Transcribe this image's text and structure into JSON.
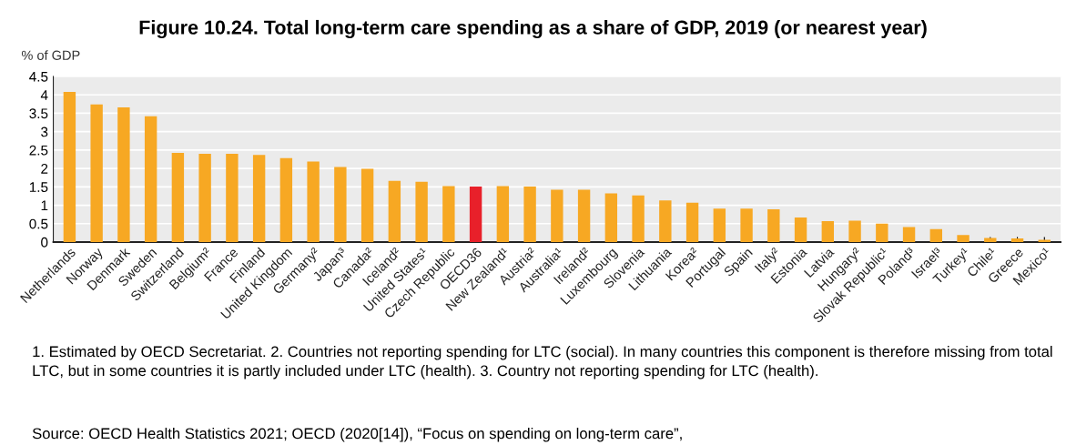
{
  "chart_data": {
    "type": "bar",
    "title": "Figure 10.24. Total long-term care spending as a share of GDP, 2019 (or nearest year)",
    "ylabel": "% of GDP",
    "categories": [
      "Netherlands",
      "Norway",
      "Denmark",
      "Sweden",
      "Switzerland",
      "Belgium²",
      "France",
      "Finland",
      "United Kingdom",
      "Germany²",
      "Japan³",
      "Canada²",
      "Iceland²",
      "United States¹",
      "Czech Republic",
      "OECD36",
      "New Zealand¹",
      "Austria²",
      "Australia¹",
      "Ireland²",
      "Luxembourg",
      "Slovenia",
      "Lithuania",
      "Korea²",
      "Portugal",
      "Spain",
      "Italy²",
      "Estonia",
      "Latvia",
      "Hungary²",
      "Slovak Republic¹",
      "Poland³",
      "Israel³",
      "Turkey¹",
      "Chile¹",
      "Greece",
      "Mexico¹"
    ],
    "values": [
      4.08,
      3.74,
      3.66,
      3.42,
      2.42,
      2.4,
      2.4,
      2.37,
      2.28,
      2.19,
      2.04,
      1.99,
      1.66,
      1.64,
      1.52,
      1.51,
      1.52,
      1.51,
      1.42,
      1.42,
      1.32,
      1.27,
      1.13,
      1.07,
      0.91,
      0.91,
      0.89,
      0.67,
      0.57,
      0.58,
      0.5,
      0.41,
      0.35,
      0.19,
      0.11,
      0.1,
      0.06
    ],
    "colors": [
      "#f7a823",
      "#f7a823",
      "#f7a823",
      "#f7a823",
      "#f7a823",
      "#f7a823",
      "#f7a823",
      "#f7a823",
      "#f7a823",
      "#f7a823",
      "#f7a823",
      "#f7a823",
      "#f7a823",
      "#f7a823",
      "#f7a823",
      "#e8202a",
      "#f7a823",
      "#f7a823",
      "#f7a823",
      "#f7a823",
      "#f7a823",
      "#f7a823",
      "#f7a823",
      "#f7a823",
      "#f7a823",
      "#f7a823",
      "#f7a823",
      "#f7a823",
      "#f7a823",
      "#f7a823",
      "#f7a823",
      "#f7a823",
      "#f7a823",
      "#f7a823",
      "#f7a823",
      "#f7a823",
      "#f7a823"
    ],
    "ylim": [
      0,
      4.5
    ],
    "yticks": [
      0,
      0.5,
      1,
      1.5,
      2,
      2.5,
      3,
      3.5,
      4,
      4.5
    ],
    "grid": "y",
    "annotations": [
      "1. Estimated by OECD Secretariat. 2. Countries not reporting spending for LTC (social). In many countries this component is therefore missing from total LTC, but in some countries it is partly included under LTC (health). 3. Country not reporting spending for LTC (health).",
      "Source: OECD Health Statistics 2021; OECD (2020[14]), “Focus on spending on long-term care”,"
    ]
  }
}
